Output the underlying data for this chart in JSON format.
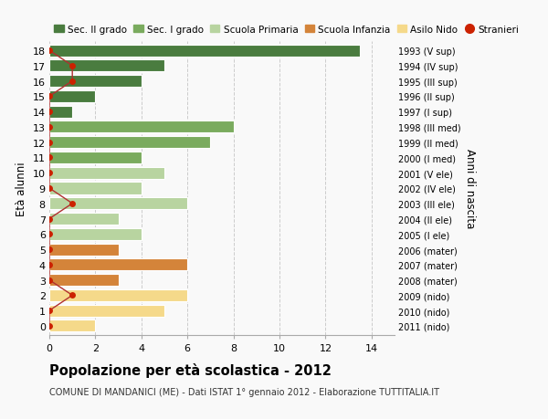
{
  "ages": [
    18,
    17,
    16,
    15,
    14,
    13,
    12,
    11,
    10,
    9,
    8,
    7,
    6,
    5,
    4,
    3,
    2,
    1,
    0
  ],
  "right_labels": [
    "1993 (V sup)",
    "1994 (IV sup)",
    "1995 (III sup)",
    "1996 (II sup)",
    "1997 (I sup)",
    "1998 (III med)",
    "1999 (II med)",
    "2000 (I med)",
    "2001 (V ele)",
    "2002 (IV ele)",
    "2003 (III ele)",
    "2004 (II ele)",
    "2005 (I ele)",
    "2006 (mater)",
    "2007 (mater)",
    "2008 (mater)",
    "2009 (nido)",
    "2010 (nido)",
    "2011 (nido)"
  ],
  "bar_values": [
    13.5,
    5.0,
    4.0,
    2.0,
    1.0,
    8.0,
    7.0,
    4.0,
    5.0,
    4.0,
    6.0,
    3.0,
    4.0,
    3.0,
    6.0,
    3.0,
    6.0,
    5.0,
    2.0
  ],
  "stranieri_values": [
    0,
    1,
    1,
    0,
    0,
    0,
    0,
    0,
    0,
    0,
    1,
    0,
    0,
    0,
    0,
    0,
    1,
    0,
    0
  ],
  "bar_colors": [
    "#4a7c3f",
    "#4a7c3f",
    "#4a7c3f",
    "#4a7c3f",
    "#4a7c3f",
    "#7aab5e",
    "#7aab5e",
    "#7aab5e",
    "#b8d4a0",
    "#b8d4a0",
    "#b8d4a0",
    "#b8d4a0",
    "#b8d4a0",
    "#d4843a",
    "#d4843a",
    "#d4843a",
    "#f5d98a",
    "#f5d98a",
    "#f5d98a"
  ],
  "legend_labels": [
    "Sec. II grado",
    "Sec. I grado",
    "Scuola Primaria",
    "Scuola Infanzia",
    "Asilo Nido",
    "Stranieri"
  ],
  "legend_colors": [
    "#4a7c3f",
    "#7aab5e",
    "#b8d4a0",
    "#d4843a",
    "#f5d98a",
    "#cc2200"
  ],
  "title": "Popolazione per età scolastica - 2012",
  "subtitle": "COMUNE DI MANDANICI (ME) - Dati ISTAT 1° gennaio 2012 - Elaborazione TUTTITALIA.IT",
  "ylabel_left": "Età alunni",
  "ylabel_right": "Anni di nascita",
  "xlim": [
    0,
    15
  ],
  "xticks": [
    0,
    2,
    4,
    6,
    8,
    10,
    12,
    14
  ],
  "background_color": "#f9f9f9",
  "grid_color": "#cccccc",
  "stranieri_color": "#cc2200",
  "stranieri_line_color": "#b03030"
}
